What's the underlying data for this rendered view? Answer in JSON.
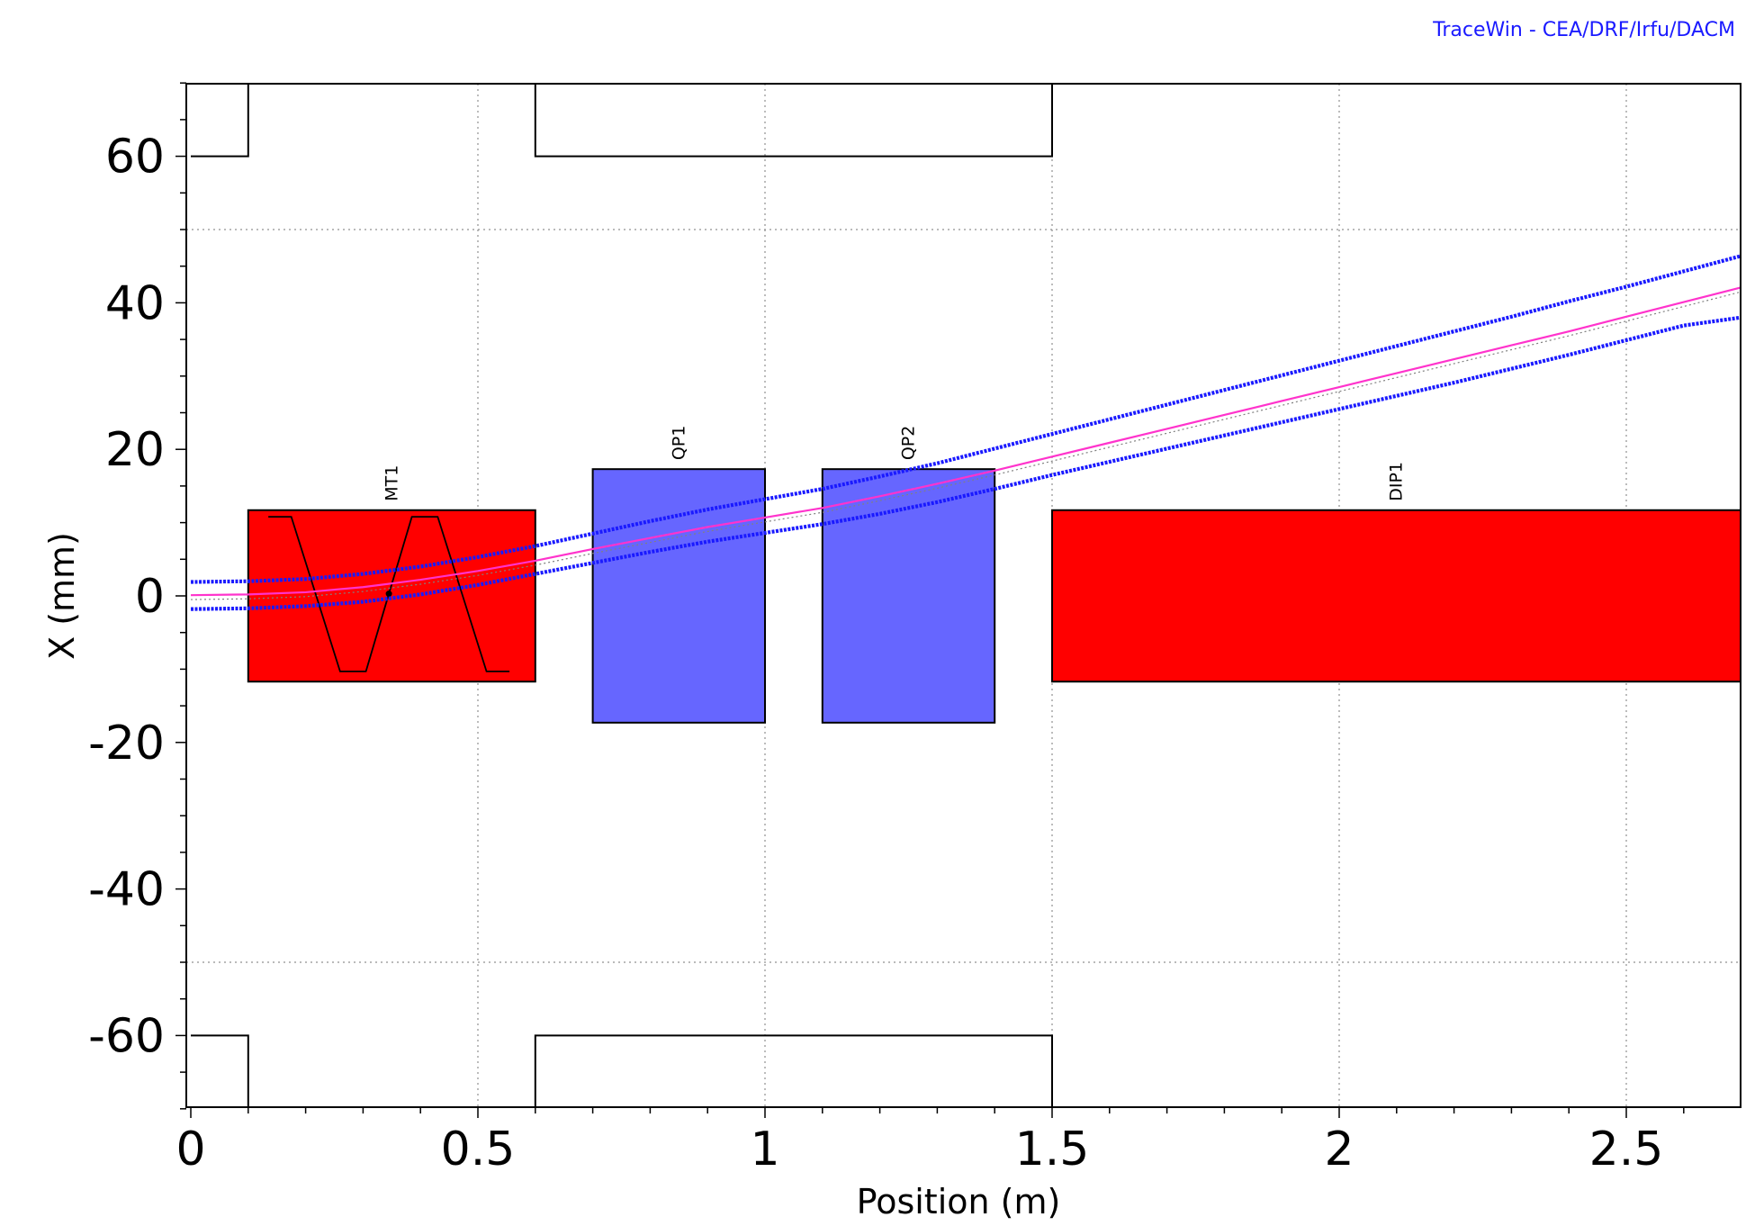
{
  "watermark": "TraceWin - CEA/DRF/Irfu/DACM",
  "chart_data": {
    "type": "line",
    "title": "",
    "xlabel": "Position (m)",
    "ylabel": "X (mm)",
    "xlim": [
      0,
      2.7
    ],
    "ylim": [
      -70,
      70
    ],
    "x_ticks": [
      0,
      0.5,
      1,
      1.5,
      2,
      2.5
    ],
    "x_tick_labels": [
      "0",
      "0.5",
      "1",
      "1.5",
      "2",
      "2.5"
    ],
    "y_ticks": [
      60,
      40,
      20,
      0,
      -20,
      -40,
      -60
    ],
    "y_tick_labels": [
      "60",
      "40",
      "20",
      "0",
      "-20",
      "-40",
      "-60"
    ],
    "grid": true,
    "aperture": [
      {
        "x0": 0,
        "x1": 0.1,
        "r": 60
      },
      {
        "x0": 0.6,
        "x1": 1.5,
        "r": 60
      }
    ],
    "elements": [
      {
        "name": "MT1",
        "x0": 0.1,
        "x1": 0.6,
        "half_height": 11.7,
        "color": "#ff0000"
      },
      {
        "name": "QP1",
        "x0": 0.7,
        "x1": 1.0,
        "half_height": 17.3,
        "color": "#6666ff"
      },
      {
        "name": "QP2",
        "x0": 1.1,
        "x1": 1.4,
        "half_height": 17.3,
        "color": "#6666ff"
      },
      {
        "name": "DIP1",
        "x0": 1.5,
        "x1": 2.7,
        "half_height": 11.7,
        "color": "#ff0000"
      }
    ],
    "mt1_profile": {
      "x": [
        0.135,
        0.175,
        0.26,
        0.305,
        0.345,
        0.385,
        0.43,
        0.515,
        0.555
      ],
      "y": [
        10.8,
        10.8,
        -10.3,
        -10.3,
        0.3,
        10.8,
        10.8,
        -10.3,
        -10.3
      ]
    },
    "series": [
      {
        "role": "envelope-upper",
        "color": "#1a1aff",
        "x": [
          0,
          0.1,
          0.2,
          0.3,
          0.4,
          0.5,
          0.6,
          0.7,
          0.8,
          0.9,
          1.0,
          1.1,
          1.2,
          1.3,
          1.4,
          1.5,
          1.6,
          1.7,
          1.8,
          1.9,
          2.0,
          2.1,
          2.2,
          2.3,
          2.4,
          2.5,
          2.6,
          2.7
        ],
        "y": [
          1.9,
          2.0,
          2.3,
          3.0,
          4.0,
          5.3,
          6.8,
          8.5,
          10.2,
          11.8,
          13.2,
          14.6,
          16.3,
          18.1,
          20.1,
          22.1,
          24.1,
          26.1,
          28.1,
          30.1,
          32.1,
          34.1,
          36.1,
          38.1,
          40.2,
          42.2,
          44.3,
          46.4
        ]
      },
      {
        "role": "centroid",
        "color": "#ff33cc",
        "x": [
          0,
          0.1,
          0.2,
          0.3,
          0.4,
          0.5,
          0.6,
          0.7,
          0.8,
          0.9,
          1.0,
          1.1,
          1.2,
          1.3,
          1.4,
          1.5,
          1.6,
          1.7,
          1.8,
          1.9,
          2.0,
          2.1,
          2.2,
          2.3,
          2.4,
          2.5,
          2.6,
          2.7
        ],
        "y": [
          0.1,
          0.2,
          0.5,
          1.2,
          2.2,
          3.4,
          4.8,
          6.4,
          7.9,
          9.4,
          10.7,
          12.0,
          13.6,
          15.3,
          17.1,
          19.0,
          20.9,
          22.8,
          24.7,
          26.6,
          28.5,
          30.4,
          32.3,
          34.2,
          36.1,
          38.1,
          40.1,
          42.1
        ]
      },
      {
        "role": "envelope-lower",
        "color": "#1a1aff",
        "x": [
          0,
          0.1,
          0.2,
          0.3,
          0.4,
          0.5,
          0.6,
          0.7,
          0.8,
          0.9,
          1.0,
          1.1,
          1.2,
          1.3,
          1.4,
          1.5,
          1.6,
          1.7,
          1.8,
          1.9,
          2.0,
          2.1,
          2.2,
          2.3,
          2.4,
          2.5,
          2.6,
          2.7
        ],
        "y": [
          -1.8,
          -1.7,
          -1.4,
          -0.8,
          0.2,
          1.5,
          3.0,
          4.5,
          6.0,
          7.4,
          8.6,
          9.8,
          11.2,
          12.8,
          14.6,
          16.5,
          18.3,
          20.1,
          21.9,
          23.7,
          25.5,
          27.3,
          29.1,
          31.0,
          32.9,
          34.9,
          36.9,
          38.0
        ]
      }
    ]
  }
}
